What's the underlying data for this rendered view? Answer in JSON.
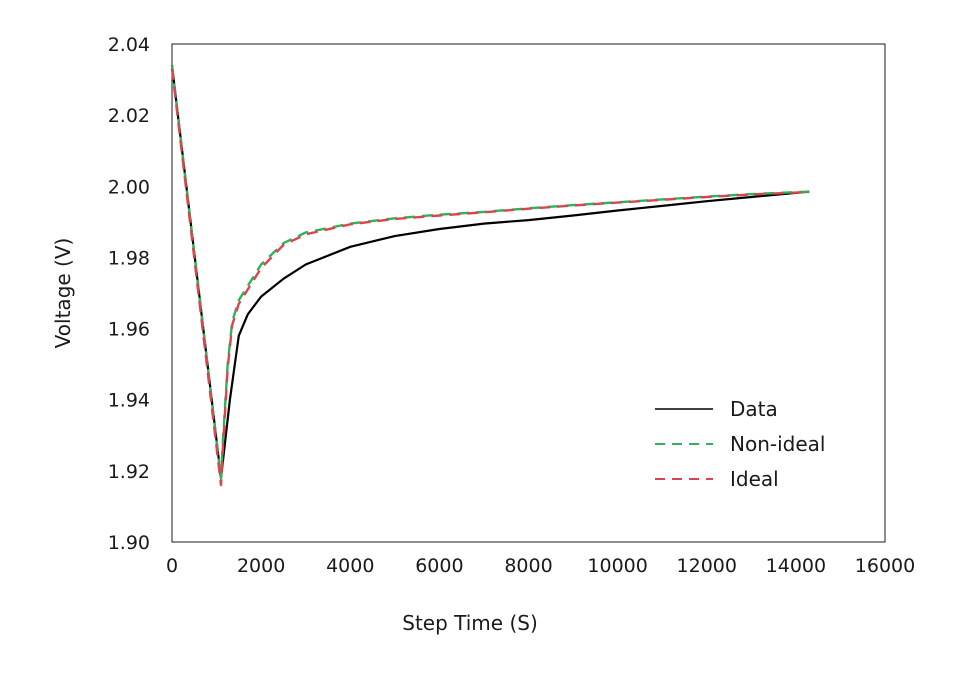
{
  "chart_data": {
    "type": "line",
    "title": "",
    "xlabel": "Step Time  (S)",
    "ylabel": "Voltage (V)",
    "xlim": [
      0,
      16000
    ],
    "ylim": [
      1.9,
      2.04
    ],
    "xticks": [
      0,
      2000,
      4000,
      6000,
      8000,
      10000,
      12000,
      14000,
      16000
    ],
    "yticks": [
      1.9,
      1.92,
      1.94,
      1.96,
      1.98,
      2.0,
      2.02,
      2.04
    ],
    "xtick_labels": [
      "0",
      "2000",
      "4000",
      "6000",
      "8000",
      "10000",
      "12000",
      "14000",
      "16000"
    ],
    "ytick_labels": [
      "1.90",
      "1.92",
      "1.94",
      "1.96",
      "1.98",
      "2.00",
      "2.02",
      "2.04"
    ],
    "grid": false,
    "legend_position": "bottom-right",
    "series": [
      {
        "name": "Data",
        "color": "#000000",
        "dash": "solid",
        "points": [
          [
            0,
            2.034
          ],
          [
            1100,
            1.918
          ],
          [
            1300,
            1.94
          ],
          [
            1500,
            1.958
          ],
          [
            1700,
            1.964
          ],
          [
            2000,
            1.969
          ],
          [
            2500,
            1.974
          ],
          [
            3000,
            1.978
          ],
          [
            4000,
            1.983
          ],
          [
            5000,
            1.986
          ],
          [
            6000,
            1.988
          ],
          [
            7000,
            1.9895
          ],
          [
            8000,
            1.9905
          ],
          [
            9000,
            1.9918
          ],
          [
            10000,
            1.9932
          ],
          [
            11000,
            1.9945
          ],
          [
            12000,
            1.9958
          ],
          [
            13000,
            1.997
          ],
          [
            14300,
            1.9985
          ]
        ]
      },
      {
        "name": "Non-ideal",
        "color": "#2db35a",
        "dash": "dashed",
        "points": [
          [
            0,
            2.034
          ],
          [
            1100,
            1.918
          ],
          [
            1150,
            1.93
          ],
          [
            1250,
            1.95
          ],
          [
            1350,
            1.962
          ],
          [
            1500,
            1.968
          ],
          [
            1700,
            1.972
          ],
          [
            2000,
            1.978
          ],
          [
            2500,
            1.984
          ],
          [
            3000,
            1.987
          ],
          [
            4000,
            1.9895
          ],
          [
            5000,
            1.991
          ],
          [
            6000,
            1.992
          ],
          [
            7000,
            1.9928
          ],
          [
            8000,
            1.9938
          ],
          [
            9000,
            1.9947
          ],
          [
            10000,
            1.9955
          ],
          [
            11000,
            1.9963
          ],
          [
            12000,
            1.9971
          ],
          [
            13000,
            1.9978
          ],
          [
            14300,
            1.9985
          ]
        ]
      },
      {
        "name": "Ideal",
        "color": "#d9454f",
        "dash": "dashed",
        "points": [
          [
            0,
            2.033
          ],
          [
            1100,
            1.916
          ],
          [
            1150,
            1.928
          ],
          [
            1250,
            1.949
          ],
          [
            1350,
            1.961
          ],
          [
            1500,
            1.967
          ],
          [
            1700,
            1.971
          ],
          [
            2000,
            1.977
          ],
          [
            2500,
            1.9835
          ],
          [
            3000,
            1.9865
          ],
          [
            4000,
            1.9893
          ],
          [
            5000,
            1.9908
          ],
          [
            6000,
            1.9918
          ],
          [
            7000,
            1.9927
          ],
          [
            8000,
            1.9937
          ],
          [
            9000,
            1.9946
          ],
          [
            10000,
            1.9954
          ],
          [
            11000,
            1.9962
          ],
          [
            12000,
            1.997
          ],
          [
            13000,
            1.9977
          ],
          [
            14300,
            1.9984
          ]
        ]
      }
    ]
  }
}
